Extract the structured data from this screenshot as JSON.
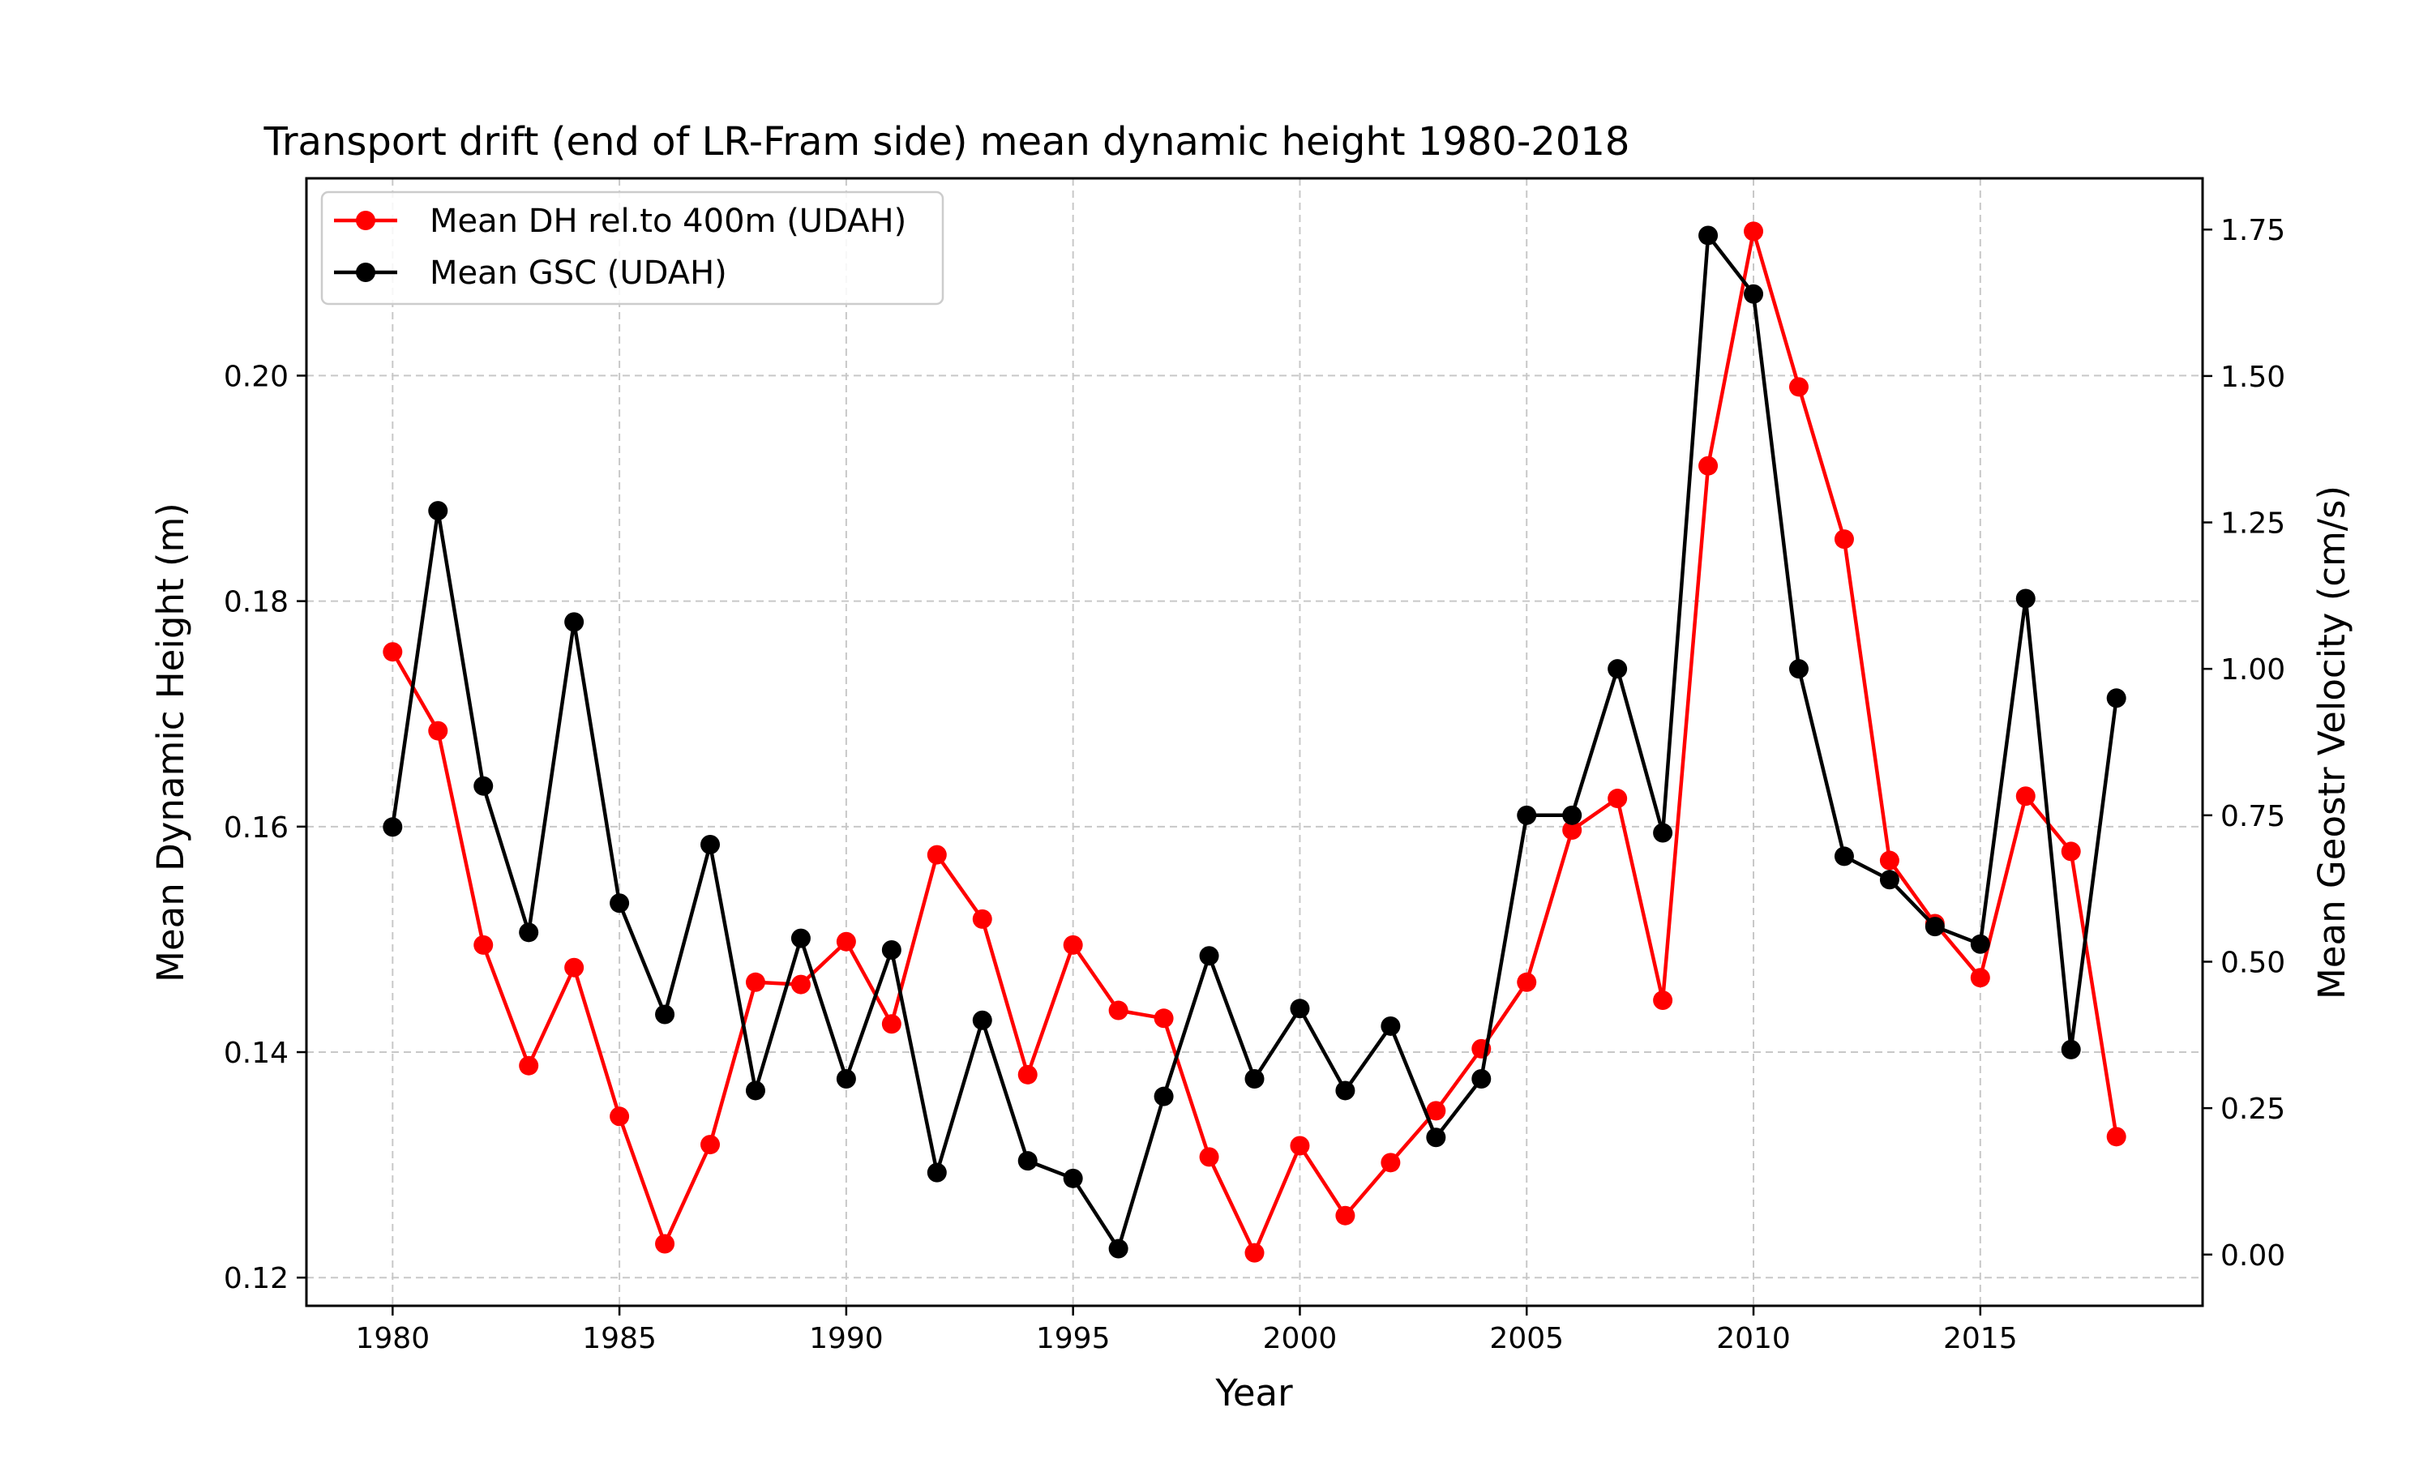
{
  "chart_data": {
    "type": "line",
    "title": "Transport drift (end of LR-Fram side) mean dynamic height 1980-2018",
    "xlabel": "Year",
    "ylabel_left": "Mean Dynamic Height (m)",
    "ylabel_right": "Mean Geostr Velocity (cm/s)",
    "xlim": [
      1978.1,
      2019.9
    ],
    "ylim_left": [
      0.1175,
      0.2175
    ],
    "ylim_right": [
      -0.0875,
      1.8375
    ],
    "x_ticks": [
      1980,
      1985,
      1990,
      1995,
      2000,
      2005,
      2010,
      2015
    ],
    "x_tick_labels": [
      "1980",
      "1985",
      "1990",
      "1995",
      "2000",
      "2005",
      "2010",
      "2015"
    ],
    "y_left_ticks": [
      0.12,
      0.14,
      0.16,
      0.18,
      0.2
    ],
    "y_left_tick_labels": [
      "0.12",
      "0.14",
      "0.16",
      "0.18",
      "0.20"
    ],
    "y_right_ticks": [
      0.0,
      0.25,
      0.5,
      0.75,
      1.0,
      1.25,
      1.5,
      1.75
    ],
    "y_right_tick_labels": [
      "0.00",
      "0.25",
      "0.50",
      "0.75",
      "1.00",
      "1.25",
      "1.50",
      "1.75"
    ],
    "grid": true,
    "legend_position": "upper-left",
    "x": [
      1980,
      1981,
      1982,
      1983,
      1984,
      1985,
      1986,
      1987,
      1988,
      1989,
      1990,
      1991,
      1992,
      1993,
      1994,
      1995,
      1996,
      1997,
      1998,
      1999,
      2000,
      2001,
      2002,
      2003,
      2004,
      2005,
      2006,
      2007,
      2008,
      2009,
      2010,
      2011,
      2012,
      2013,
      2014,
      2015,
      2016,
      2017,
      2018
    ],
    "series": [
      {
        "name": "Mean DH rel.to 400m (UDAH)",
        "axis": "left",
        "color": "#ff0000",
        "values": [
          0.1755,
          0.1685,
          0.1495,
          0.1388,
          0.1475,
          0.1343,
          0.123,
          0.1318,
          0.1462,
          0.146,
          0.1498,
          0.1425,
          0.1575,
          0.1518,
          0.138,
          0.1495,
          0.1437,
          0.143,
          0.1307,
          0.1222,
          0.1317,
          0.1255,
          0.1302,
          0.1348,
          0.1403,
          0.1462,
          0.1597,
          0.1625,
          0.1446,
          0.192,
          0.2128,
          0.199,
          0.1855,
          0.157,
          0.1514,
          0.1466,
          0.1627,
          0.1578,
          0.1325
        ]
      },
      {
        "name": "Mean GSC (UDAH)",
        "axis": "right",
        "color": "#000000",
        "values": [
          0.73,
          1.27,
          0.8,
          0.55,
          1.08,
          0.6,
          0.41,
          0.7,
          0.28,
          0.54,
          0.3,
          0.52,
          0.14,
          0.4,
          0.16,
          0.13,
          0.01,
          0.27,
          0.51,
          0.3,
          0.42,
          0.28,
          0.39,
          0.2,
          0.3,
          0.75,
          0.75,
          1.0,
          0.72,
          1.74,
          1.64,
          1.0,
          0.68,
          0.64,
          0.56,
          0.53,
          1.12,
          0.35,
          0.95
        ]
      }
    ]
  }
}
